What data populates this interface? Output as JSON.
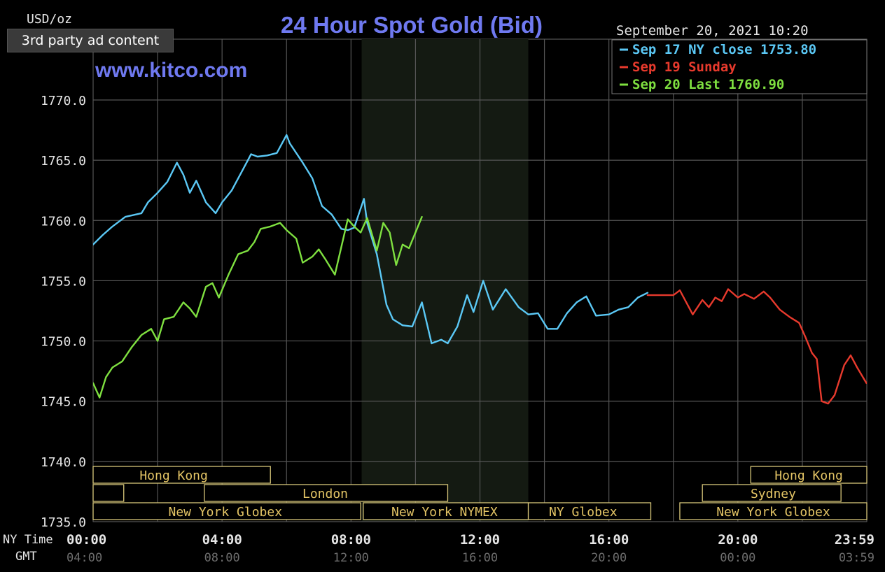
{
  "ad_badge": "3rd party ad content",
  "chart_data": {
    "type": "line",
    "title": "24 Hour Spot Gold (Bid)",
    "source": "www.kitco.com",
    "unit_label": "USD/oz",
    "timestamp": "September 20, 2021 10:20",
    "ylim": [
      1735,
      1772
    ],
    "yticks": [
      "1770.0",
      "1765.0",
      "1760.0",
      "1755.0",
      "1750.0",
      "1745.0",
      "1740.0",
      "1735.0"
    ],
    "yticks_values": [
      1770,
      1765,
      1760,
      1755,
      1750,
      1745,
      1740,
      1735
    ],
    "xlim": [
      0,
      24
    ],
    "ny_time_label": "NY Time",
    "gmt_label": "GMT",
    "ny_ticks": [
      "00:00",
      "04:00",
      "08:00",
      "12:00",
      "16:00",
      "20:00",
      "23:59"
    ],
    "gmt_ticks": [
      "04:00",
      "08:00",
      "12:00",
      "16:00",
      "20:00",
      "00:00",
      "03:59"
    ],
    "tick_hours": [
      0,
      4,
      8,
      12,
      16,
      20,
      24
    ],
    "grid": true,
    "legend_position": "top-right",
    "highlight_band_hours": [
      8.33,
      13.5
    ],
    "series": [
      {
        "name": "Sep 17 NY close 1753.80",
        "color": "#5bc8f5",
        "x": [
          0,
          0.3,
          0.6,
          1.0,
          1.5,
          1.7,
          2.0,
          2.3,
          2.6,
          2.8,
          3.0,
          3.2,
          3.5,
          3.8,
          4.0,
          4.3,
          4.6,
          4.9,
          5.1,
          5.4,
          5.7,
          6.0,
          6.1,
          6.5,
          6.8,
          7.1,
          7.4,
          7.7,
          7.9,
          8.1,
          8.4,
          8.5,
          8.8,
          9.1,
          9.3,
          9.6,
          9.9,
          10.2,
          10.5,
          10.8,
          11.0,
          11.3,
          11.6,
          11.8,
          12.1,
          12.4,
          12.8,
          13.2,
          13.5,
          13.8,
          14.1,
          14.4,
          14.7,
          15.0,
          15.3,
          15.6,
          16.0,
          16.3,
          16.6,
          16.9,
          17.2
        ],
        "y": [
          1758.0,
          1758.8,
          1759.5,
          1760.3,
          1760.6,
          1761.5,
          1762.3,
          1763.2,
          1764.8,
          1763.8,
          1762.3,
          1763.3,
          1761.5,
          1760.6,
          1761.5,
          1762.5,
          1764.0,
          1765.5,
          1765.3,
          1765.4,
          1765.6,
          1767.1,
          1766.4,
          1764.8,
          1763.5,
          1761.2,
          1760.5,
          1759.3,
          1759.2,
          1759.4,
          1761.8,
          1759.8,
          1757.2,
          1753.0,
          1751.8,
          1751.3,
          1751.2,
          1753.2,
          1749.8,
          1750.1,
          1749.8,
          1751.2,
          1753.8,
          1752.4,
          1755.0,
          1752.6,
          1754.3,
          1752.8,
          1752.2,
          1752.3,
          1751.0,
          1751.0,
          1752.3,
          1753.2,
          1753.7,
          1752.1,
          1752.2,
          1752.6,
          1752.8,
          1753.6,
          1754.0
        ]
      },
      {
        "name": "Sep 19 Sunday",
        "color": "#e83a2d",
        "x": [
          17.2,
          17.6,
          18.0,
          18.2,
          18.4,
          18.6,
          18.9,
          19.1,
          19.3,
          19.5,
          19.7,
          20.0,
          20.2,
          20.5,
          20.8,
          21.0,
          21.3,
          21.6,
          21.9,
          22.1,
          22.3,
          22.45,
          22.6,
          22.8,
          23.0,
          23.3,
          23.5,
          23.7,
          23.99
        ],
        "y": [
          1753.8,
          1753.8,
          1753.8,
          1754.2,
          1753.2,
          1752.2,
          1753.4,
          1752.8,
          1753.6,
          1753.3,
          1754.3,
          1753.6,
          1753.9,
          1753.5,
          1754.1,
          1753.6,
          1752.6,
          1752.0,
          1751.5,
          1750.3,
          1749.0,
          1748.5,
          1745.0,
          1744.8,
          1745.5,
          1748.0,
          1748.8,
          1747.8,
          1746.5
        ]
      },
      {
        "name": "Sep 20 Last 1760.90",
        "color": "#7fe040",
        "x": [
          0,
          0.2,
          0.4,
          0.6,
          0.9,
          1.2,
          1.5,
          1.8,
          2.0,
          2.2,
          2.5,
          2.8,
          3.0,
          3.2,
          3.5,
          3.7,
          3.9,
          4.2,
          4.5,
          4.8,
          5.0,
          5.2,
          5.5,
          5.8,
          6.0,
          6.3,
          6.5,
          6.8,
          7.0,
          7.2,
          7.5,
          7.7,
          7.9,
          8.1,
          8.3,
          8.5,
          8.8,
          9.0,
          9.2,
          9.4,
          9.6,
          9.8,
          10.0,
          10.2
        ],
        "y": [
          1746.5,
          1745.3,
          1747.0,
          1747.8,
          1748.3,
          1749.5,
          1750.5,
          1751.0,
          1750.0,
          1751.8,
          1752.0,
          1753.2,
          1752.7,
          1752.0,
          1754.5,
          1754.8,
          1753.6,
          1755.5,
          1757.2,
          1757.5,
          1758.2,
          1759.3,
          1759.5,
          1759.8,
          1759.2,
          1758.5,
          1756.5,
          1757.0,
          1757.6,
          1756.8,
          1755.5,
          1757.8,
          1760.1,
          1759.5,
          1759.0,
          1760.2,
          1757.5,
          1759.8,
          1759.0,
          1756.3,
          1758.0,
          1757.7,
          1759.0,
          1760.3
        ]
      }
    ],
    "markets": [
      {
        "label": "Hong Kong",
        "row": 0,
        "start": 0,
        "end": 5.5,
        "text_at": 2.5
      },
      {
        "label": "",
        "row": 1,
        "start": 0,
        "end": 0.95,
        "text_at": null
      },
      {
        "label": "London",
        "row": 1,
        "start": 3.45,
        "end": 11.0,
        "text_at": 7.2
      },
      {
        "label": "New York Globex",
        "row": 2,
        "start": 0,
        "end": 8.3,
        "text_at": 4.1
      },
      {
        "label": "New York NYMEX",
        "row": 2,
        "start": 8.38,
        "end": 13.5,
        "text_at": 10.9
      },
      {
        "label": "NY Globex",
        "row": 2,
        "start": 13.5,
        "end": 17.3,
        "text_at": 15.2
      },
      {
        "label": "Hong Kong",
        "row": 0,
        "start": 20.4,
        "end": 24,
        "text_at": 22.2
      },
      {
        "label": "Sydney",
        "row": 1,
        "start": 18.9,
        "end": 23.2,
        "text_at": 21.1
      },
      {
        "label": "New York Globex",
        "row": 2,
        "start": 18.2,
        "end": 24,
        "text_at": 21.1
      }
    ]
  }
}
